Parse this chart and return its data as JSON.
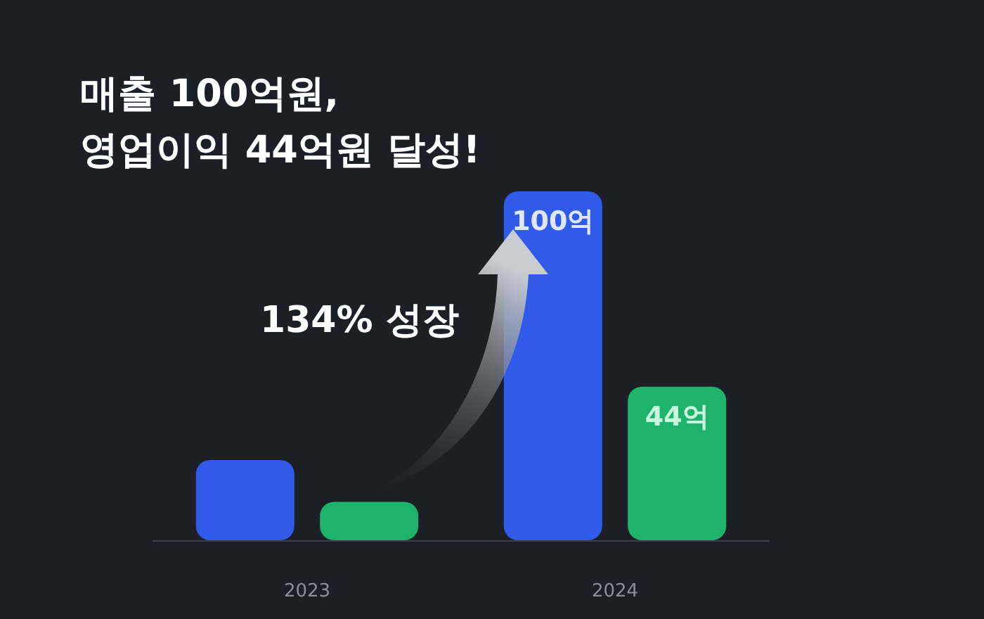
{
  "chart_data": {
    "type": "bar",
    "title": "매출 100억원,\n영업이익 44억원 달성!",
    "categories": [
      "2023",
      "2024"
    ],
    "series": [
      {
        "color": "#2f5be8",
        "values": [
          23,
          100
        ],
        "value_labels": [
          null,
          "100억"
        ]
      },
      {
        "color": "#1db36b",
        "values": [
          11,
          44
        ],
        "value_labels": [
          null,
          "44억"
        ]
      }
    ],
    "annotations": [
      "134% 성장"
    ]
  }
}
